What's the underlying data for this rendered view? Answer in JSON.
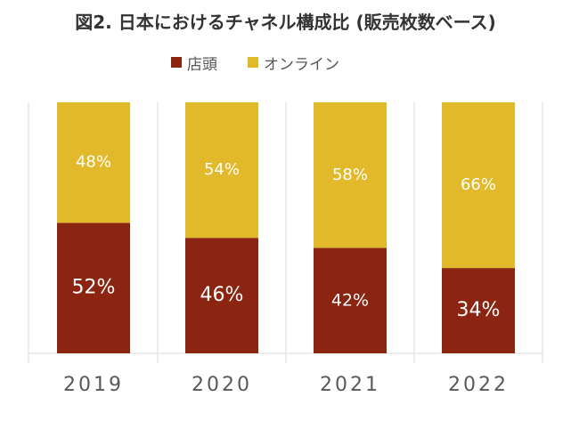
{
  "title": "図2. 日本におけるチャネル構成比 (販売枚数ベース)",
  "colors": {
    "store": "#8b2512",
    "online": "#e2b92a",
    "grid": "#e6e6e6",
    "text_dark": "#333333",
    "axis_text": "#595959"
  },
  "chart_data": {
    "type": "bar",
    "stacked": true,
    "categories": [
      "2019",
      "2020",
      "2021",
      "2022"
    ],
    "series": [
      {
        "name": "店頭",
        "values": [
          52,
          46,
          42,
          34
        ],
        "labels": [
          "52%",
          "46%",
          "42%",
          "34%"
        ]
      },
      {
        "name": "オンライン",
        "values": [
          48,
          54,
          58,
          66
        ],
        "labels": [
          "48%",
          "54%",
          "58%",
          "66%"
        ]
      }
    ],
    "ylim": [
      0,
      100
    ],
    "grid": "vertical",
    "legend": "top"
  }
}
